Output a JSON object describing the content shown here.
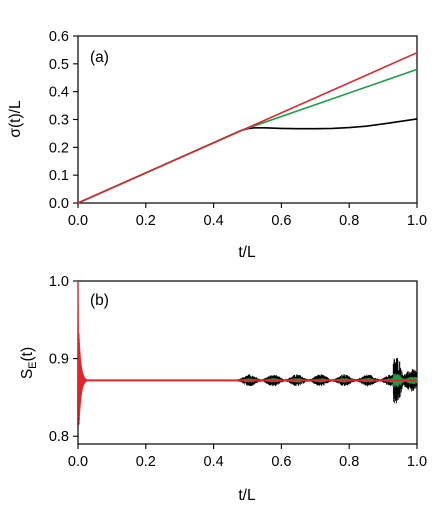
{
  "chart_data": [
    {
      "type": "line",
      "panel_label": "(a)",
      "xlabel": "t/L",
      "ylabel": "σ(t)/L",
      "xlim": [
        0.0,
        1.0
      ],
      "ylim": [
        0.0,
        0.6
      ],
      "x_ticks": [
        0.0,
        0.2,
        0.4,
        0.6,
        0.8,
        1.0
      ],
      "x_tick_labels": [
        "0.0",
        "0.2",
        "0.4",
        "0.6",
        "0.8",
        "1.0"
      ],
      "y_ticks": [
        0.0,
        0.1,
        0.2,
        0.3,
        0.4,
        0.5,
        0.6
      ],
      "y_tick_labels": [
        "0.0",
        "0.1",
        "0.2",
        "0.3",
        "0.4",
        "0.5",
        "0.6"
      ],
      "grid": false,
      "series": [
        {
          "color": "#e0262d",
          "x": [
            0.0,
            1.0
          ],
          "y": [
            0.0,
            0.54
          ]
        },
        {
          "color": "#1a9e4a",
          "x": [
            0.0,
            0.48,
            1.0
          ],
          "y": [
            0.0,
            0.26,
            0.48
          ]
        },
        {
          "color": "#000000",
          "x": [
            0.0,
            0.48,
            0.5,
            0.52,
            0.55,
            0.6,
            0.65,
            0.7,
            0.75,
            0.8,
            0.85,
            0.9,
            0.95,
            1.0
          ],
          "y": [
            0.0,
            0.26,
            0.267,
            0.27,
            0.27,
            0.268,
            0.267,
            0.267,
            0.268,
            0.271,
            0.276,
            0.284,
            0.293,
            0.302
          ]
        }
      ]
    },
    {
      "type": "line",
      "panel_label": "(b)",
      "xlabel": "t/L",
      "ylabel_main": "S",
      "ylabel_sub": "E",
      "ylabel_tail": "(t)",
      "xlim": [
        0.0,
        1.0
      ],
      "ylim": [
        0.79,
        1.0
      ],
      "x_ticks": [
        0.0,
        0.2,
        0.4,
        0.6,
        0.8,
        1.0
      ],
      "x_tick_labels": [
        "0.0",
        "0.2",
        "0.4",
        "0.6",
        "0.8",
        "1.0"
      ],
      "y_ticks": [
        0.8,
        0.9,
        1.0
      ],
      "y_tick_labels": [
        "0.8",
        "0.9",
        "1.0"
      ],
      "grid": false,
      "baseline": 0.872,
      "series": [
        {
          "color": "#000000",
          "onset": 0.47,
          "spike_at": 0.95,
          "spike_amplitude": 0.065,
          "noise_amplitude": 0.008
        },
        {
          "color": "#1a9e4a",
          "onset": 0.47,
          "spike_at": 0.95,
          "spike_amplitude": 0.018,
          "noise_amplitude": 0.003
        },
        {
          "color": "#e0262d",
          "initial_value": 1.0,
          "initial_dip": 0.81,
          "decay_until": 0.03
        }
      ]
    }
  ]
}
